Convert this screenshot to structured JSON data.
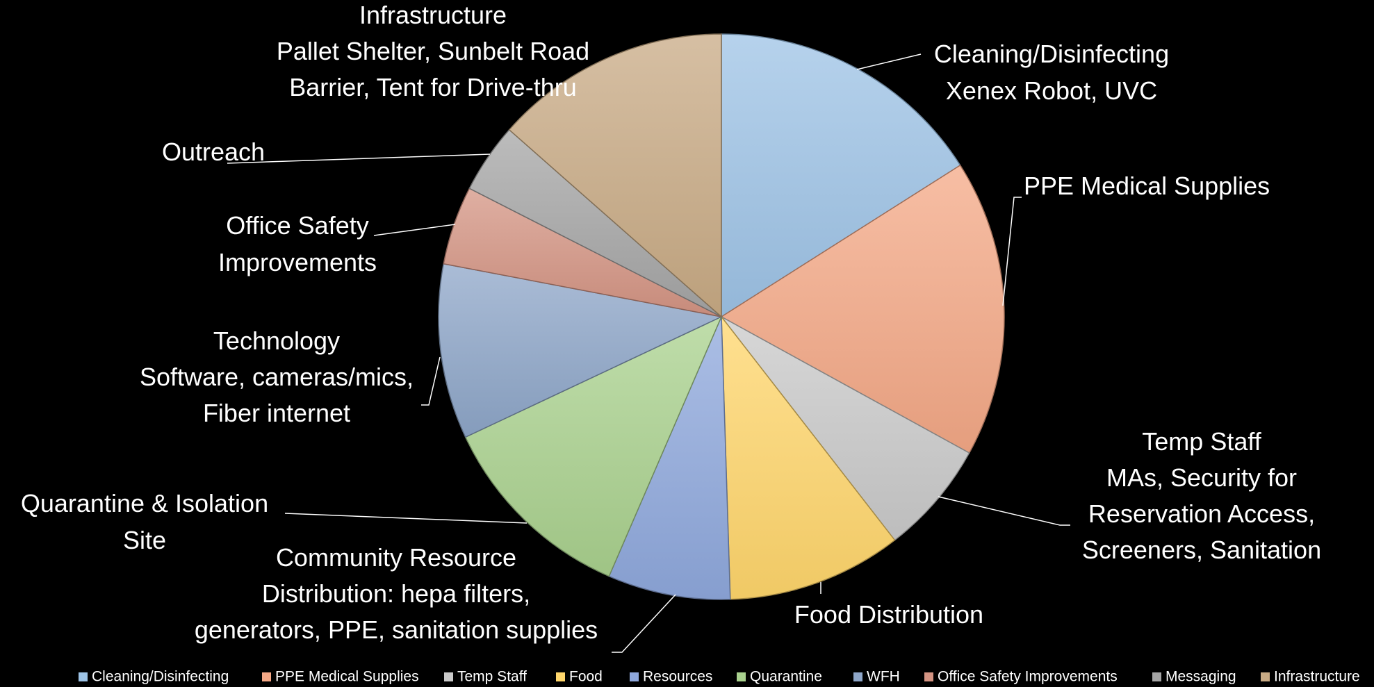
{
  "chart_data": {
    "type": "pie",
    "slices": [
      {
        "name": "Cleaning/Disinfecting",
        "value": 16.0,
        "color": "#9dc3e6",
        "label": [
          "Cleaning/Disinfecting",
          "Xenex Robot, UVC"
        ]
      },
      {
        "name": "PPE Medical Supplies",
        "value": 17.0,
        "color": "#f4a886",
        "label": [
          "PPE Medical Supplies"
        ]
      },
      {
        "name": "Temp Staff",
        "value": 6.5,
        "color": "#c9c9c9",
        "label": [
          "Temp Staff",
          "MAs, Security for",
          "Reservation Access,",
          "Screeners, Sanitation"
        ]
      },
      {
        "name": "Food",
        "value": 10.0,
        "color": "#ffd66b",
        "label": [
          "Food Distribution"
        ]
      },
      {
        "name": "Resources",
        "value": 7.0,
        "color": "#8fa8dc",
        "label": [
          "Community Resource",
          "Distribution: hepa filters,",
          "generators, PPE, sanitation supplies"
        ]
      },
      {
        "name": "Quarantine",
        "value": 11.5,
        "color": "#a9d18e",
        "label": [
          "Quarantine & Isolation",
          "Site"
        ]
      },
      {
        "name": "WFH",
        "value": 10.0,
        "color": "#8ea6c8",
        "label": [
          "Technology",
          "Software, cameras/mics,",
          "Fiber internet"
        ]
      },
      {
        "name": "Office Safety Improvements",
        "value": 4.5,
        "color": "#d49483",
        "label": [
          "Office Safety",
          "Improvements"
        ]
      },
      {
        "name": "Messaging",
        "value": 4.0,
        "color": "#a5a5a5",
        "label": [
          "Outreach"
        ]
      },
      {
        "name": "Infrastructure",
        "value": 13.5,
        "color": "#c8aa84",
        "label": [
          "Infrastructure",
          "Pallet Shelter, Sunbelt Road",
          "Barrier, Tent for Drive-thru"
        ]
      }
    ],
    "legend": {
      "placement": "bottom",
      "entries": [
        "Cleaning/Disinfecting",
        "PPE Medical Supplies",
        "Temp Staff",
        "Food",
        "Resources",
        "Quarantine",
        "WFH",
        "Office Safety Improvements",
        "Messaging",
        "Infrastructure"
      ]
    }
  }
}
